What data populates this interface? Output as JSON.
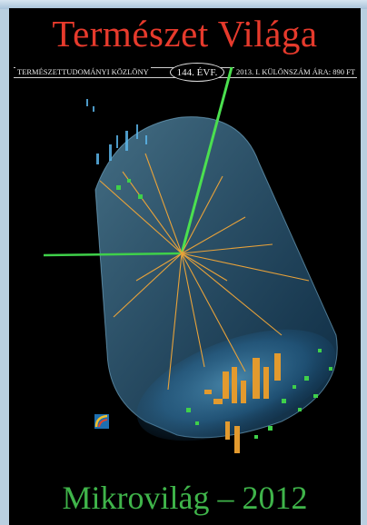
{
  "cover": {
    "masthead": "Természet Világa",
    "info_left": "TERMÉSZETTUDOMÁNYI KÖZLÖNY",
    "issue": "144. ÉVF.",
    "info_right": "2013. I. KÜLÖNSZÁM  ÁRA: 890 FT",
    "bottom_title": "Mikrovilág – 2012"
  },
  "colors": {
    "masthead": "#e63a2c",
    "bottom_title": "#3fb44a",
    "detector": "#4fa6d8",
    "tracks": "#e8a23a",
    "hits": "#3fd04a"
  }
}
